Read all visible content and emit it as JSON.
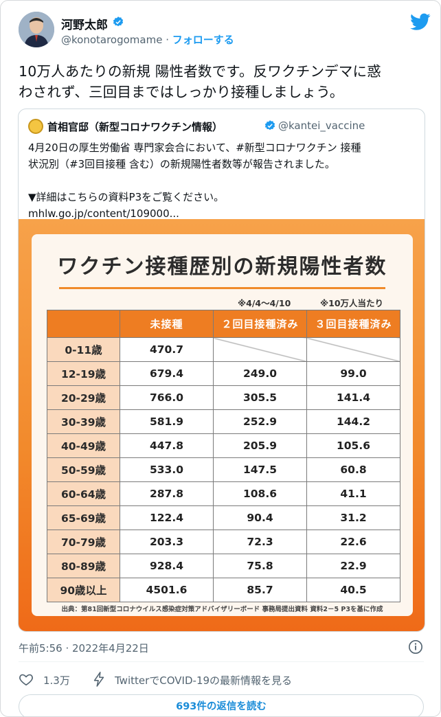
{
  "author": {
    "name": "河野太郎",
    "handle": "@konotarogomame",
    "separator": "·",
    "follow_label": "フォローする"
  },
  "tweet": {
    "text_line1": "10万人あたりの新規 陽性者数です。反ワクチンデマに惑",
    "text_line2": "わされず、三回目まではしっかり接種しましょう。",
    "timestamp": "午前5:56 · 2022年4月22日",
    "likes": "1.3万",
    "covid_link": "TwitterでCOVID-19の最新情報を見る",
    "replies_button": "693件の返信を読む"
  },
  "quoted": {
    "name": "首相官邸（新型コロナワクチン情報）",
    "handle": "@kantei_vaccine",
    "line1": "4月20日の厚生労働省 専門家会合において、#新型コロナワクチン 接種",
    "line2": "状況別（#3回目接種 含む）の新規陽性者数等が報告されました。",
    "line3": "▼詳細はこちらの資料P3をご覧ください。",
    "link": "mhlw.go.jp/content/109000..."
  },
  "image": {
    "title": "ワクチン接種歴別の新規陽性者数",
    "note_period": "※4/4～4/10",
    "note_unit": "※10万人当たり",
    "source": "出典：第81回新型コロナウイルス感染症対策アドバイザリーボード 事務局提出資料 資料2－5 P3を基に作成",
    "table": {
      "headers": [
        "",
        "未接種",
        "２回目接種済み",
        "３回目接種済み"
      ],
      "rows": [
        {
          "age": "0-11歳",
          "unvax": "470.7",
          "dose2": "",
          "dose3": ""
        },
        {
          "age": "12-19歳",
          "unvax": "679.4",
          "dose2": "249.0",
          "dose3": "99.0"
        },
        {
          "age": "20-29歳",
          "unvax": "766.0",
          "dose2": "305.5",
          "dose3": "141.4"
        },
        {
          "age": "30-39歳",
          "unvax": "581.9",
          "dose2": "252.9",
          "dose3": "144.2"
        },
        {
          "age": "40-49歳",
          "unvax": "447.8",
          "dose2": "205.9",
          "dose3": "105.6"
        },
        {
          "age": "50-59歳",
          "unvax": "533.0",
          "dose2": "147.5",
          "dose3": "60.8"
        },
        {
          "age": "60-64歳",
          "unvax": "287.8",
          "dose2": "108.6",
          "dose3": "41.1"
        },
        {
          "age": "65-69歳",
          "unvax": "122.4",
          "dose2": "90.4",
          "dose3": "31.2"
        },
        {
          "age": "70-79歳",
          "unvax": "203.3",
          "dose2": "72.3",
          "dose3": "22.6"
        },
        {
          "age": "80-89歳",
          "unvax": "928.4",
          "dose2": "75.8",
          "dose3": "22.9"
        },
        {
          "age": "90歳以上",
          "unvax": "4501.6",
          "dose2": "85.7",
          "dose3": "40.5"
        }
      ]
    }
  },
  "colors": {
    "accent_blue": "#1d9bf0",
    "orange": "#ee7d22",
    "age_cell": "#fad9bd"
  }
}
